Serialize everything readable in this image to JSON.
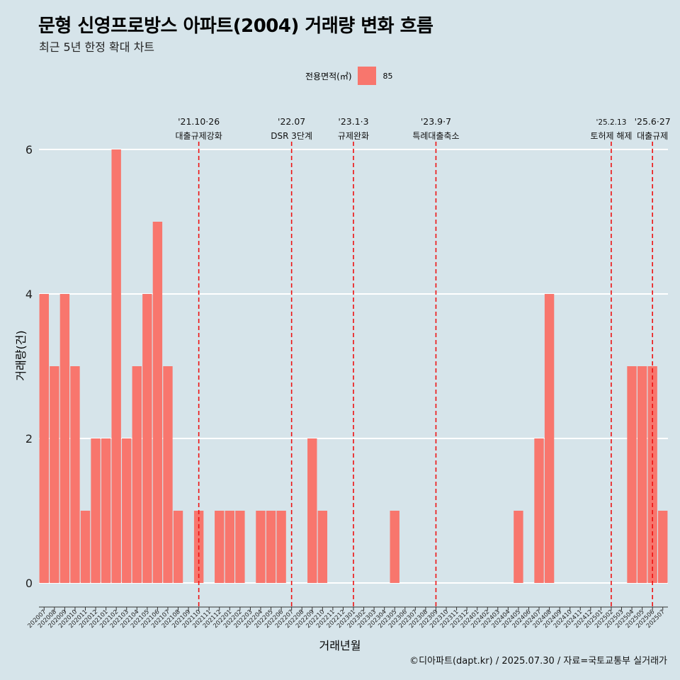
{
  "title": "문형 신영프로방스 아파트(2004) 거래량 변화 흐름",
  "subtitle": "최근 5년 한정 확대 차트",
  "caption": "©디아파트(dapt.kr) / 2025.07.30 / 자료=국토교통부 실거래가",
  "legend": {
    "title": "전용면적(㎡)",
    "items": [
      {
        "label": "85",
        "color": "#f8766d"
      }
    ]
  },
  "chart_data": {
    "type": "bar",
    "xlabel": "거래년월",
    "ylabel": "거래량(건)",
    "ylim": [
      0,
      6
    ],
    "yticks": [
      0,
      2,
      4,
      6
    ],
    "grid": true,
    "legend_position": "top",
    "bar_color": "#f8766d",
    "categories": [
      "202007",
      "202008",
      "202009",
      "202010",
      "202011",
      "202012",
      "202101",
      "202102",
      "202103",
      "202104",
      "202105",
      "202106",
      "202107",
      "202108",
      "202109",
      "202110",
      "202111",
      "202112",
      "202201",
      "202202",
      "202203",
      "202204",
      "202205",
      "202206",
      "202207",
      "202208",
      "202209",
      "202210",
      "202211",
      "202212",
      "202301",
      "202302",
      "202303",
      "202304",
      "202305",
      "202306",
      "202307",
      "202308",
      "202309",
      "202310",
      "202311",
      "202312",
      "202401",
      "202402",
      "202403",
      "202404",
      "202405",
      "202406",
      "202407",
      "202408",
      "202409",
      "202410",
      "202411",
      "202412",
      "202501",
      "202502",
      "202503",
      "202504",
      "202505",
      "202506",
      "202507"
    ],
    "series": [
      {
        "name": "85",
        "values": [
          4,
          3,
          4,
          3,
          1,
          2,
          2,
          6,
          2,
          3,
          4,
          5,
          3,
          1,
          0,
          1,
          0,
          1,
          1,
          1,
          0,
          1,
          1,
          1,
          0,
          0,
          2,
          1,
          0,
          0,
          0,
          0,
          0,
          0,
          1,
          0,
          0,
          0,
          0,
          0,
          0,
          0,
          0,
          0,
          0,
          0,
          1,
          0,
          2,
          4,
          0,
          0,
          0,
          0,
          0,
          0,
          0,
          3,
          3,
          3,
          1
        ]
      }
    ],
    "annotations": [
      {
        "x": "202110",
        "date": "'21.10·26",
        "label": "대출규제강화"
      },
      {
        "x": "202207",
        "date": "'22.07",
        "label": "DSR 3단계"
      },
      {
        "x": "202301",
        "date": "'23.1·3",
        "label": "규제완화"
      },
      {
        "x": "202309",
        "date": "'23.9·7",
        "label": "특례대출축소"
      },
      {
        "x": "202502",
        "date": "'25.2.13",
        "label": "토허제 해제"
      },
      {
        "x": "202506",
        "date": "'25.6·27",
        "label": "대출규제"
      }
    ]
  }
}
